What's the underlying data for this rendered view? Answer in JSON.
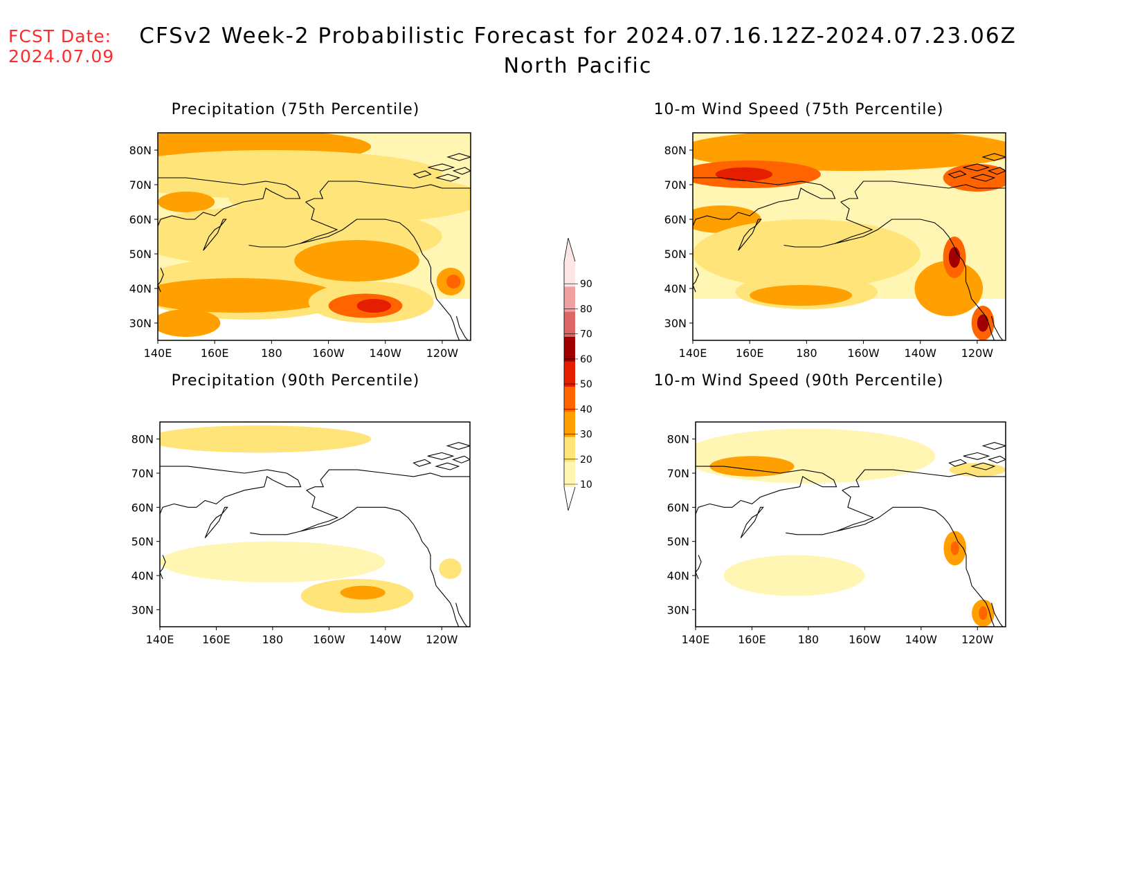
{
  "header": {
    "fcst_label": "FCST Date:",
    "fcst_date": "2024.07.09",
    "title": "CFSv2 Week-2 Probabilistic Forecast for 2024.07.16.12Z-2024.07.23.06Z",
    "subtitle": "North Pacific"
  },
  "colorbar": {
    "levels": [
      10,
      20,
      30,
      40,
      50,
      60,
      70,
      80,
      90
    ],
    "labels": [
      "10",
      "20",
      "30",
      "40",
      "50",
      "60",
      "70",
      "80",
      "90"
    ],
    "colors": [
      "#fff6b4",
      "#ffe47a",
      "#ffa000",
      "#ff6400",
      "#e61e00",
      "#a00000",
      "#dd6666",
      "#f0a0a0",
      "#fde6e6"
    ]
  },
  "panels": [
    {
      "id": "precip-75",
      "title": "Precipitation (75th Percentile)",
      "x_ticks": [
        "140E",
        "160E",
        "180",
        "160W",
        "140W",
        "120W"
      ],
      "y_ticks": [
        "30N",
        "40N",
        "50N",
        "60N",
        "70N",
        "80N"
      ],
      "blobs": [
        {
          "lon": 170,
          "lat": 81,
          "rx": 45,
          "ry": 5,
          "level": 30
        },
        {
          "lon": 180,
          "lat": 73,
          "rx": 60,
          "ry": 7,
          "level": 20
        },
        {
          "lon": 210,
          "lat": 66,
          "rx": 45,
          "ry": 7,
          "level": 20
        },
        {
          "lon": 150,
          "lat": 65,
          "rx": 10,
          "ry": 3,
          "level": 30
        },
        {
          "lon": 185,
          "lat": 55,
          "rx": 55,
          "ry": 9,
          "level": 20
        },
        {
          "lon": 172,
          "lat": 40,
          "rx": 40,
          "ry": 9,
          "level": 20
        },
        {
          "lon": 168,
          "lat": 38,
          "rx": 35,
          "ry": 5,
          "level": 30
        },
        {
          "lon": 150,
          "lat": 30,
          "rx": 12,
          "ry": 4,
          "level": 30
        },
        {
          "lon": 210,
          "lat": 48,
          "rx": 22,
          "ry": 6,
          "level": 30
        },
        {
          "lon": 215,
          "lat": 36,
          "rx": 22,
          "ry": 6,
          "level": 20
        },
        {
          "lon": 213,
          "lat": 35,
          "rx": 13,
          "ry": 3.5,
          "level": 40
        },
        {
          "lon": 216,
          "lat": 35,
          "rx": 6,
          "ry": 2,
          "level": 50
        },
        {
          "lon": 243,
          "lat": 42,
          "rx": 5,
          "ry": 4,
          "level": 30
        },
        {
          "lon": 244,
          "lat": 42,
          "rx": 2.5,
          "ry": 2,
          "level": 40
        }
      ]
    },
    {
      "id": "wind-75",
      "title": "10-m Wind Speed (75th Percentile)",
      "x_ticks": [
        "140E",
        "160E",
        "180",
        "160W",
        "140W",
        "120W"
      ],
      "y_ticks": [
        "30N",
        "40N",
        "50N",
        "60N",
        "70N",
        "80N"
      ],
      "blobs": [
        {
          "lon": 195,
          "lat": 80,
          "rx": 60,
          "ry": 6,
          "level": 30
        },
        {
          "lon": 160,
          "lat": 73,
          "rx": 25,
          "ry": 4,
          "level": 40
        },
        {
          "lon": 158,
          "lat": 73,
          "rx": 10,
          "ry": 2,
          "level": 50
        },
        {
          "lon": 240,
          "lat": 72,
          "rx": 12,
          "ry": 4,
          "level": 40
        },
        {
          "lon": 150,
          "lat": 60,
          "rx": 14,
          "ry": 4,
          "level": 30
        },
        {
          "lon": 180,
          "lat": 50,
          "rx": 40,
          "ry": 10,
          "level": 20
        },
        {
          "lon": 180,
          "lat": 39,
          "rx": 25,
          "ry": 5,
          "level": 20
        },
        {
          "lon": 178,
          "lat": 38,
          "rx": 18,
          "ry": 3,
          "level": 30
        },
        {
          "lon": 230,
          "lat": 40,
          "rx": 12,
          "ry": 8,
          "level": 30
        },
        {
          "lon": 232,
          "lat": 49,
          "rx": 4,
          "ry": 6,
          "level": 40
        },
        {
          "lon": 232,
          "lat": 49,
          "rx": 2,
          "ry": 3,
          "level": 60
        },
        {
          "lon": 242,
          "lat": 30,
          "rx": 4,
          "ry": 5,
          "level": 40
        },
        {
          "lon": 242,
          "lat": 30,
          "rx": 2,
          "ry": 2.5,
          "level": 60
        }
      ]
    },
    {
      "id": "precip-90",
      "title": "Precipitation (90th Percentile)",
      "x_ticks": [
        "140E",
        "160E",
        "180",
        "160W",
        "140W",
        "120W"
      ],
      "y_ticks": [
        "30N",
        "40N",
        "50N",
        "60N",
        "70N",
        "80N"
      ],
      "blobs": [
        {
          "lon": 175,
          "lat": 80,
          "rx": 40,
          "ry": 4,
          "level": 20
        },
        {
          "lon": 180,
          "lat": 44,
          "rx": 40,
          "ry": 6,
          "level": 10
        },
        {
          "lon": 210,
          "lat": 34,
          "rx": 20,
          "ry": 5,
          "level": 20
        },
        {
          "lon": 212,
          "lat": 35,
          "rx": 8,
          "ry": 2,
          "level": 30
        },
        {
          "lon": 243,
          "lat": 42,
          "rx": 4,
          "ry": 3,
          "level": 20
        }
      ]
    },
    {
      "id": "wind-90",
      "title": "10-m Wind Speed (90th Percentile)",
      "x_ticks": [
        "140E",
        "160E",
        "180",
        "160W",
        "140W",
        "120W"
      ],
      "y_ticks": [
        "30N",
        "40N",
        "50N",
        "60N",
        "70N",
        "80N"
      ],
      "blobs": [
        {
          "lon": 180,
          "lat": 75,
          "rx": 45,
          "ry": 8,
          "level": 10
        },
        {
          "lon": 160,
          "lat": 72,
          "rx": 15,
          "ry": 3,
          "level": 30
        },
        {
          "lon": 240,
          "lat": 71,
          "rx": 10,
          "ry": 2,
          "level": 20
        },
        {
          "lon": 175,
          "lat": 40,
          "rx": 25,
          "ry": 6,
          "level": 10
        },
        {
          "lon": 232,
          "lat": 48,
          "rx": 4,
          "ry": 5,
          "level": 30
        },
        {
          "lon": 232,
          "lat": 48,
          "rx": 1.5,
          "ry": 2,
          "level": 40
        },
        {
          "lon": 242,
          "lat": 29,
          "rx": 4,
          "ry": 4,
          "level": 30
        },
        {
          "lon": 242,
          "lat": 29,
          "rx": 1.5,
          "ry": 2,
          "level": 40
        }
      ]
    }
  ]
}
